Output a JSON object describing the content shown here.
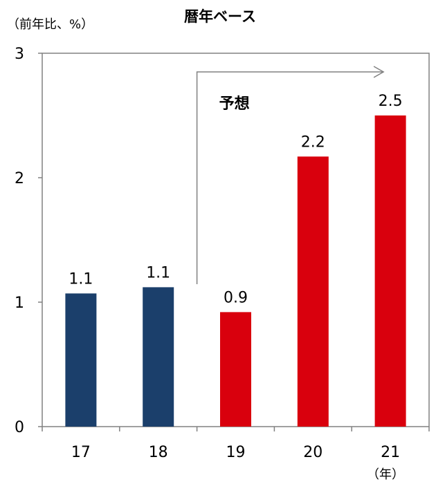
{
  "chart_data": {
    "type": "bar",
    "title": "暦年ベース",
    "ylabel": "（前年比、%）",
    "xlabel": "（年）",
    "ylim": [
      0,
      3
    ],
    "yticks": [
      0,
      1,
      2,
      3
    ],
    "categories": [
      "17",
      "18",
      "19",
      "20",
      "21"
    ],
    "values": [
      1.07,
      1.12,
      0.92,
      2.17,
      2.5
    ],
    "data_labels": [
      "1.1",
      "1.1",
      "0.9",
      "2.2",
      "2.5"
    ],
    "forecast_label": "予想",
    "forecast_start_index": 2,
    "colors": {
      "actual": "#1b3f6b",
      "forecast": "#d9000d",
      "axis": "#808080"
    },
    "grid": false,
    "legend": "none"
  }
}
